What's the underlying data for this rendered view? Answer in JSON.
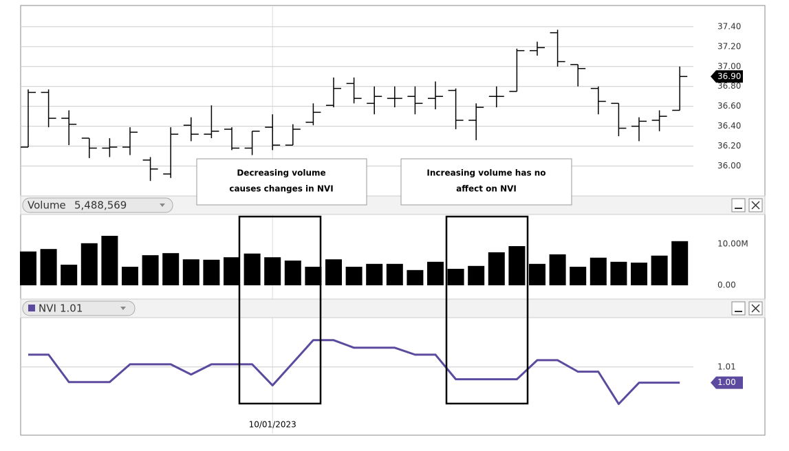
{
  "chart_data": [
    {
      "type": "ohlc",
      "categories": [
        null,
        null,
        null,
        null,
        null,
        null,
        null,
        null,
        null,
        null,
        null,
        null,
        "10/01/2023",
        null,
        null,
        null,
        null,
        null,
        null,
        null,
        null,
        null,
        null,
        null,
        null,
        null,
        null,
        null,
        null,
        null,
        null,
        null,
        null
      ],
      "open": [
        36.19,
        36.74,
        36.48,
        36.28,
        36.18,
        36.19,
        36.06,
        35.92,
        36.41,
        36.32,
        36.37,
        36.18,
        36.39,
        36.21,
        36.44,
        36.61,
        36.83,
        36.63,
        36.68,
        36.7,
        36.68,
        36.76,
        36.46,
        36.7,
        36.75,
        37.16,
        37.34,
        37.02,
        36.78,
        36.63,
        36.4,
        36.46,
        36.56
      ],
      "high": [
        36.77,
        36.77,
        36.56,
        36.28,
        36.28,
        36.39,
        36.09,
        36.39,
        36.49,
        36.61,
        36.39,
        36.35,
        36.52,
        36.42,
        36.63,
        36.89,
        36.89,
        36.8,
        36.8,
        36.8,
        36.85,
        36.78,
        36.63,
        36.8,
        37.18,
        37.25,
        37.37,
        37.02,
        36.8,
        36.63,
        36.49,
        36.56,
        37.0
      ],
      "low": [
        36.19,
        36.39,
        36.21,
        36.08,
        36.09,
        36.11,
        35.85,
        35.88,
        36.25,
        36.28,
        36.16,
        36.11,
        36.16,
        36.21,
        36.41,
        36.59,
        36.63,
        36.52,
        36.59,
        36.52,
        36.57,
        36.37,
        36.26,
        36.59,
        36.75,
        37.11,
        37.0,
        36.8,
        36.52,
        36.3,
        36.25,
        36.35,
        36.56
      ],
      "close": [
        36.74,
        36.48,
        36.42,
        36.18,
        36.19,
        36.34,
        35.97,
        36.32,
        36.32,
        36.35,
        36.18,
        36.35,
        36.21,
        36.37,
        36.54,
        36.78,
        36.68,
        36.7,
        36.68,
        36.63,
        36.7,
        36.46,
        36.59,
        36.7,
        37.16,
        37.19,
        37.05,
        36.98,
        36.65,
        36.38,
        36.45,
        36.5,
        36.9
      ],
      "color": "#000000",
      "ylim": [
        35.72,
        37.6
      ],
      "yticks": [
        {
          "value": 36.0,
          "label": "36.00"
        },
        {
          "value": 36.2,
          "label": "36.20"
        },
        {
          "value": 36.4,
          "label": "36.40"
        },
        {
          "value": 36.6,
          "label": "36.60"
        },
        {
          "value": 36.8,
          "label": "36.80"
        },
        {
          "value": 37.0,
          "label": "37.00"
        },
        {
          "value": 37.2,
          "label": "37.20"
        },
        {
          "value": 37.4,
          "label": "37.40"
        }
      ],
      "grid": true,
      "last_value": {
        "value": 36.9,
        "label": "36.90"
      },
      "annotations": [
        {
          "lines": [
            "Decreasing volume",
            "causes changes in NVI"
          ]
        },
        {
          "lines": [
            "Increasing volume has no",
            "affect on NVI"
          ]
        }
      ]
    },
    {
      "type": "bar",
      "name": "Volume",
      "header_value": "5,488,569",
      "values": [
        8200000,
        8800000,
        5000000,
        10200000,
        12000000,
        4500000,
        7300000,
        7800000,
        6300000,
        6200000,
        6800000,
        7700000,
        6800000,
        6000000,
        4500000,
        6300000,
        4500000,
        5200000,
        5200000,
        3700000,
        5700000,
        4000000,
        4700000,
        8000000,
        9500000,
        5200000,
        7500000,
        4500000,
        6700000,
        5700000,
        5500000,
        7200000,
        10700000
      ],
      "color": "#000000",
      "ylim": [
        0,
        17000000
      ],
      "yticks": [
        {
          "value": 0,
          "label": "0.00"
        },
        {
          "value": 10000000,
          "label": "10.00M"
        }
      ],
      "grid": false
    },
    {
      "type": "line",
      "name": "NVI",
      "header_value": "1.01",
      "values": [
        1.0178,
        1.0178,
        1.0004,
        1.0004,
        1.0004,
        1.0117,
        1.0117,
        1.0117,
        1.0052,
        1.0117,
        1.0117,
        1.0117,
        0.9983,
        1.0126,
        1.027,
        1.027,
        1.0222,
        1.0222,
        1.0222,
        1.0178,
        1.0178,
        1.0022,
        1.0022,
        1.0022,
        1.0022,
        1.0143,
        1.0143,
        1.007,
        1.007,
        0.9865,
        1.0,
        1.0,
        1.0
      ],
      "color": "#5b4a9e",
      "ylim": [
        0.968,
        1.04
      ],
      "yticks": [
        {
          "value": 1.01,
          "label": "1.01"
        }
      ],
      "grid": true,
      "last_value": {
        "value": 1.0,
        "label": "1.00"
      }
    }
  ]
}
